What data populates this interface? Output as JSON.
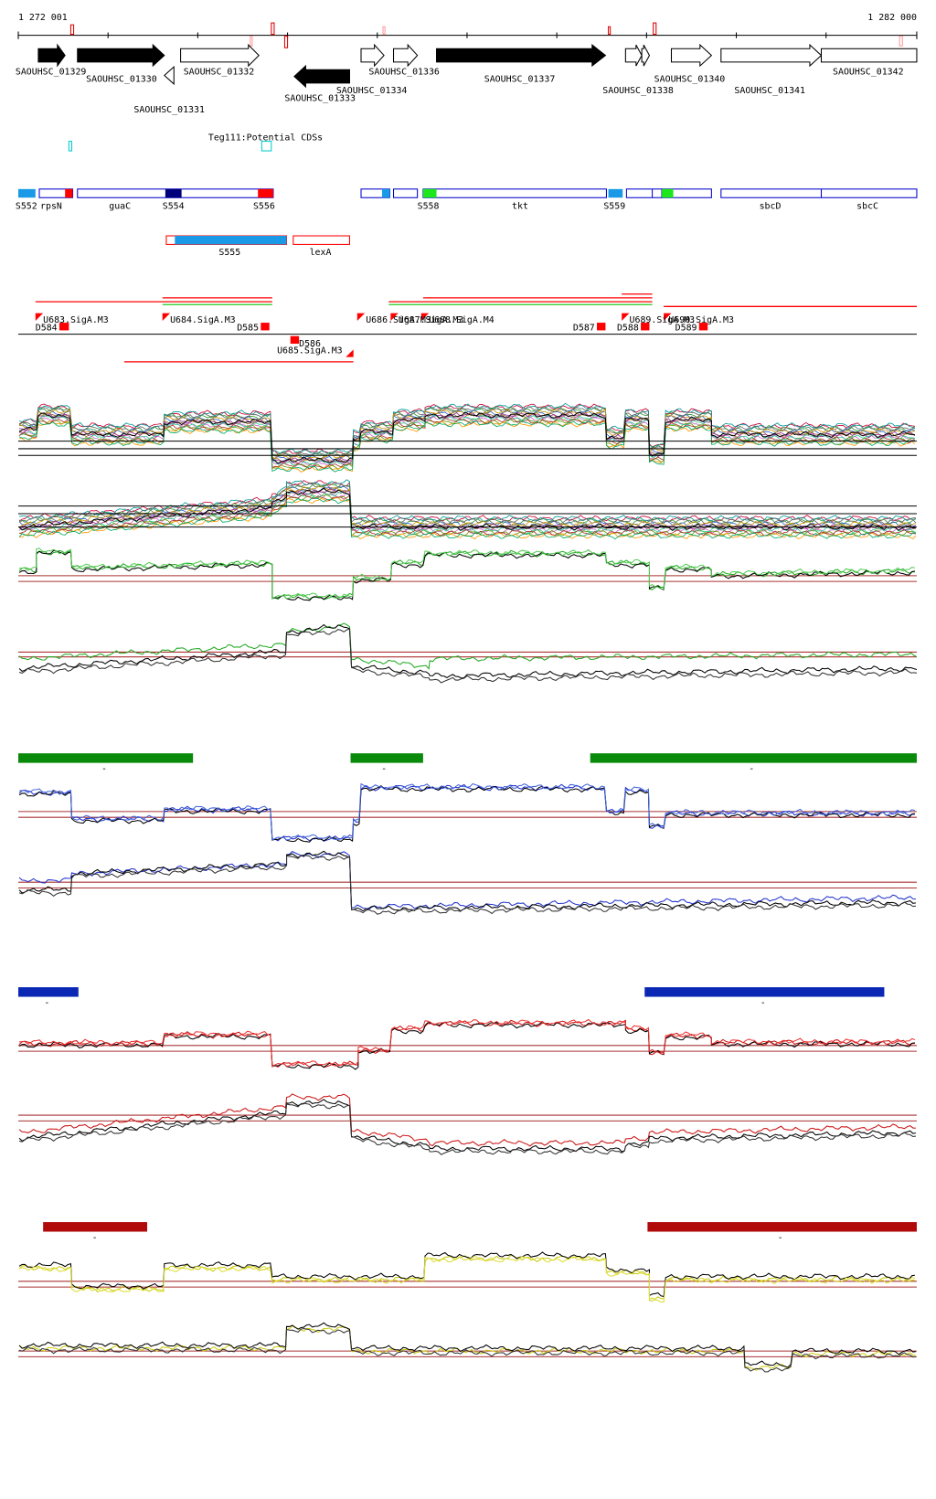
{
  "header": {
    "start": "1 272 001",
    "end": "1 282 000"
  },
  "genes": [
    "SAOUHSC_01329",
    "SAOUHSC_01330",
    "SAOUHSC_01332",
    "SAOUHSC_01331",
    "SAOUHSC_01333",
    "SAOUHSC_01334",
    "SAOUHSC_01336",
    "SAOUHSC_01337",
    "SAOUHSC_01338",
    "SAOUHSC_01340",
    "SAOUHSC_01341",
    "SAOUHSC_01342"
  ],
  "cds_track": "Teg111:Potential CDSs",
  "segments": [
    "S552",
    "rpsN",
    "guaC",
    "S554",
    "S556",
    "S558",
    "tkt",
    "S559",
    "sbcD",
    "sbcC"
  ],
  "segments_lower": [
    "S555",
    "lexA"
  ],
  "promoters": [
    "U683.SigA.M3",
    "D584",
    "U684.SigA.M3",
    "D585",
    "D586",
    "U685.SigA.M3",
    "U686.SigA.M3",
    "U687.SigA.M3",
    "U688.SigA.M4",
    "D587",
    "D588",
    "U689.SigA.M3",
    "U690.SigA.M3",
    "D589"
  ],
  "condition_labels": [
    "-",
    "-",
    "-",
    "-",
    "-",
    "-",
    "-"
  ]
}
